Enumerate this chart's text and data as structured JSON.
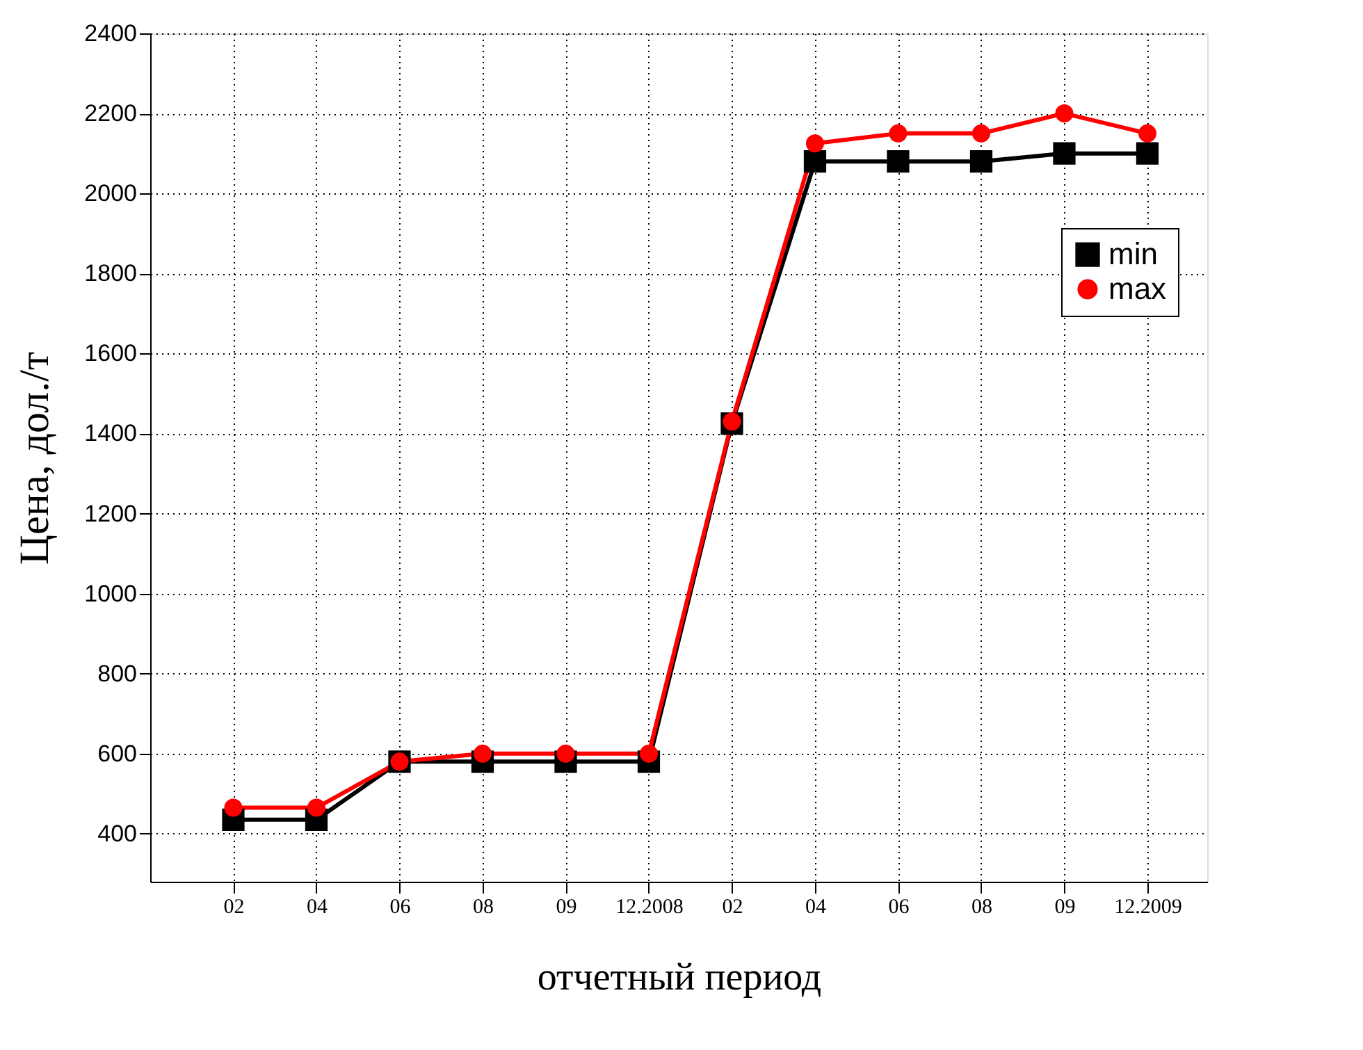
{
  "chart_data": {
    "type": "line",
    "xlabel": "отчетный период",
    "ylabel": "Цена, дол./т",
    "categories": [
      "02",
      "04",
      "06",
      "08",
      "09",
      "12.2008",
      "02",
      "04",
      "06",
      "08",
      "09",
      "12.2009"
    ],
    "series": [
      {
        "name": "min",
        "color": "#000000",
        "marker": "square",
        "values": [
          435,
          435,
          580,
          580,
          580,
          580,
          1425,
          2080,
          2080,
          2080,
          2100,
          2100
        ]
      },
      {
        "name": "max",
        "color": "#ff0000",
        "marker": "circle",
        "values": [
          465,
          465,
          580,
          600,
          600,
          600,
          1430,
          2125,
          2150,
          2150,
          2200,
          2150
        ]
      }
    ],
    "ylim": [
      280,
      2400
    ],
    "yticks": [
      400,
      600,
      800,
      1000,
      1200,
      1400,
      1600,
      1800,
      2000,
      2200,
      2400
    ],
    "grid": true,
    "legend": "top right",
    "line_style": "solid"
  }
}
